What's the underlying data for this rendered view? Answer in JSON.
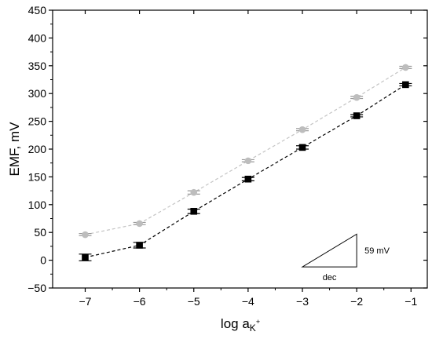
{
  "chart_data": {
    "type": "scatter",
    "xlabel": {
      "main": "log a",
      "sub": "K",
      "sup": "+"
    },
    "ylabel": "EMF, mV",
    "xlim": [
      -7.6,
      -0.7
    ],
    "ylim": [
      -50,
      450
    ],
    "xticks": [
      -7,
      -6,
      -5,
      -4,
      -3,
      -2,
      -1
    ],
    "yticks": [
      -50,
      0,
      50,
      100,
      150,
      200,
      250,
      300,
      350,
      400,
      450
    ],
    "xtick_labels": [
      "−7",
      "−6",
      "−5",
      "−4",
      "−3",
      "−2",
      "−1"
    ],
    "ytick_labels": [
      "−50",
      "0",
      "50",
      "100",
      "150",
      "200",
      "250",
      "300",
      "350",
      "400",
      "450"
    ],
    "grid": false,
    "series": [
      {
        "marker": "circle",
        "line": "dashed",
        "color": "#bdbdbd",
        "x": [
          -7,
          -6,
          -5,
          -4,
          -3,
          -2,
          -1.1
        ],
        "y": [
          46,
          66,
          122,
          179,
          235,
          293,
          347
        ],
        "err": [
          2,
          2,
          3,
          2,
          2,
          2,
          2
        ]
      },
      {
        "marker": "square",
        "line": "dashed",
        "color": "#000000",
        "x": [
          -7,
          -6,
          -5,
          -4,
          -3,
          -2,
          -1.1
        ],
        "y": [
          5,
          27,
          88,
          146,
          203,
          260,
          316
        ],
        "err": [
          6,
          5,
          4,
          3,
          3,
          2,
          2
        ]
      }
    ],
    "slope_triangle": {
      "x_start": -3,
      "x_end": -2,
      "y_start": -12,
      "y_end": 47,
      "run_label": "dec",
      "rise_label": "59 mV"
    }
  }
}
